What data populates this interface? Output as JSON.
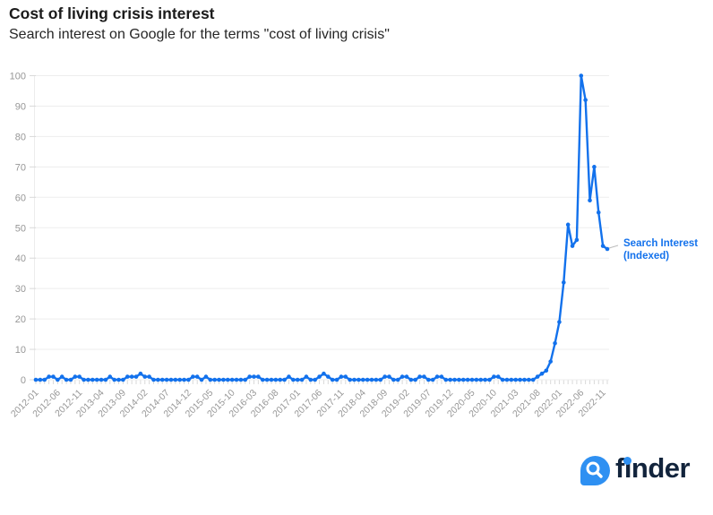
{
  "header": {
    "title": "Cost of living crisis interest",
    "subtitle": "Search interest on Google for the terms \"cost of living crisis\""
  },
  "chart_data": {
    "type": "line",
    "title": "Cost of living crisis interest",
    "subtitle": "Search interest on Google for the terms \"cost of living crisis\"",
    "xlabel": "",
    "ylabel": "",
    "ylim": [
      0,
      100
    ],
    "y_ticks": [
      0,
      10,
      20,
      30,
      40,
      50,
      60,
      70,
      80,
      90,
      100
    ],
    "grid": true,
    "grid_color": "#ededed",
    "axis_label_color": "#979797",
    "x_tick_labels": [
      "2012-01",
      "2012-06",
      "2012-11",
      "2013-04",
      "2013-09",
      "2014-02",
      "2014-07",
      "2014-12",
      "2015-05",
      "2015-10",
      "2016-03",
      "2016-08",
      "2017-01",
      "2017-06",
      "2017-11",
      "2018-04",
      "2018-09",
      "2019-02",
      "2019-07",
      "2019-12",
      "2020-05",
      "2020-10",
      "2021-03",
      "2021-08",
      "2022-01",
      "2022-06",
      "2022-11"
    ],
    "x_tick_every": 5,
    "x": [
      "2012-01",
      "2012-02",
      "2012-03",
      "2012-04",
      "2012-05",
      "2012-06",
      "2012-07",
      "2012-08",
      "2012-09",
      "2012-10",
      "2012-11",
      "2012-12",
      "2013-01",
      "2013-02",
      "2013-03",
      "2013-04",
      "2013-05",
      "2013-06",
      "2013-07",
      "2013-08",
      "2013-09",
      "2013-10",
      "2013-11",
      "2013-12",
      "2014-01",
      "2014-02",
      "2014-03",
      "2014-04",
      "2014-05",
      "2014-06",
      "2014-07",
      "2014-08",
      "2014-09",
      "2014-10",
      "2014-11",
      "2014-12",
      "2015-01",
      "2015-02",
      "2015-03",
      "2015-04",
      "2015-05",
      "2015-06",
      "2015-07",
      "2015-08",
      "2015-09",
      "2015-10",
      "2015-11",
      "2015-12",
      "2016-01",
      "2016-02",
      "2016-03",
      "2016-04",
      "2016-05",
      "2016-06",
      "2016-07",
      "2016-08",
      "2016-09",
      "2016-10",
      "2016-11",
      "2016-12",
      "2017-01",
      "2017-02",
      "2017-03",
      "2017-04",
      "2017-05",
      "2017-06",
      "2017-07",
      "2017-08",
      "2017-09",
      "2017-10",
      "2017-11",
      "2017-12",
      "2018-01",
      "2018-02",
      "2018-03",
      "2018-04",
      "2018-05",
      "2018-06",
      "2018-07",
      "2018-08",
      "2018-09",
      "2018-10",
      "2018-11",
      "2018-12",
      "2019-01",
      "2019-02",
      "2019-03",
      "2019-04",
      "2019-05",
      "2019-06",
      "2019-07",
      "2019-08",
      "2019-09",
      "2019-10",
      "2019-11",
      "2019-12",
      "2020-01",
      "2020-02",
      "2020-03",
      "2020-04",
      "2020-05",
      "2020-06",
      "2020-07",
      "2020-08",
      "2020-09",
      "2020-10",
      "2020-11",
      "2020-12",
      "2021-01",
      "2021-02",
      "2021-03",
      "2021-04",
      "2021-05",
      "2021-06",
      "2021-07",
      "2021-08",
      "2021-09",
      "2021-10",
      "2021-11",
      "2021-12",
      "2022-01",
      "2022-02",
      "2022-03",
      "2022-04",
      "2022-05",
      "2022-06",
      "2022-07",
      "2022-08",
      "2022-09",
      "2022-10",
      "2022-11",
      "2022-12"
    ],
    "series": [
      {
        "name": "Search Interest (Indexed)",
        "color": "#1271EC",
        "values": [
          0,
          0,
          0,
          1,
          1,
          0,
          1,
          0,
          0,
          1,
          1,
          0,
          0,
          0,
          0,
          0,
          0,
          1,
          0,
          0,
          0,
          1,
          1,
          1,
          2,
          1,
          1,
          0,
          0,
          0,
          0,
          0,
          0,
          0,
          0,
          0,
          1,
          1,
          0,
          1,
          0,
          0,
          0,
          0,
          0,
          0,
          0,
          0,
          0,
          1,
          1,
          1,
          0,
          0,
          0,
          0,
          0,
          0,
          1,
          0,
          0,
          0,
          1,
          0,
          0,
          1,
          2,
          1,
          0,
          0,
          1,
          1,
          0,
          0,
          0,
          0,
          0,
          0,
          0,
          0,
          1,
          1,
          0,
          0,
          1,
          1,
          0,
          0,
          1,
          1,
          0,
          0,
          1,
          1,
          0,
          0,
          0,
          0,
          0,
          0,
          0,
          0,
          0,
          0,
          0,
          1,
          1,
          0,
          0,
          0,
          0,
          0,
          0,
          0,
          0,
          1,
          2,
          3,
          6,
          12,
          19,
          32,
          51,
          44,
          46,
          100,
          92,
          59,
          70,
          55,
          44,
          43
        ]
      }
    ],
    "legend": {
      "line1": "Search Interest",
      "line2": "(Indexed)",
      "position": "right-of-last-point"
    }
  },
  "footer": {
    "brand": "finder",
    "logo_blue": "#2E90F2",
    "wordmark_color": "#12243C"
  }
}
